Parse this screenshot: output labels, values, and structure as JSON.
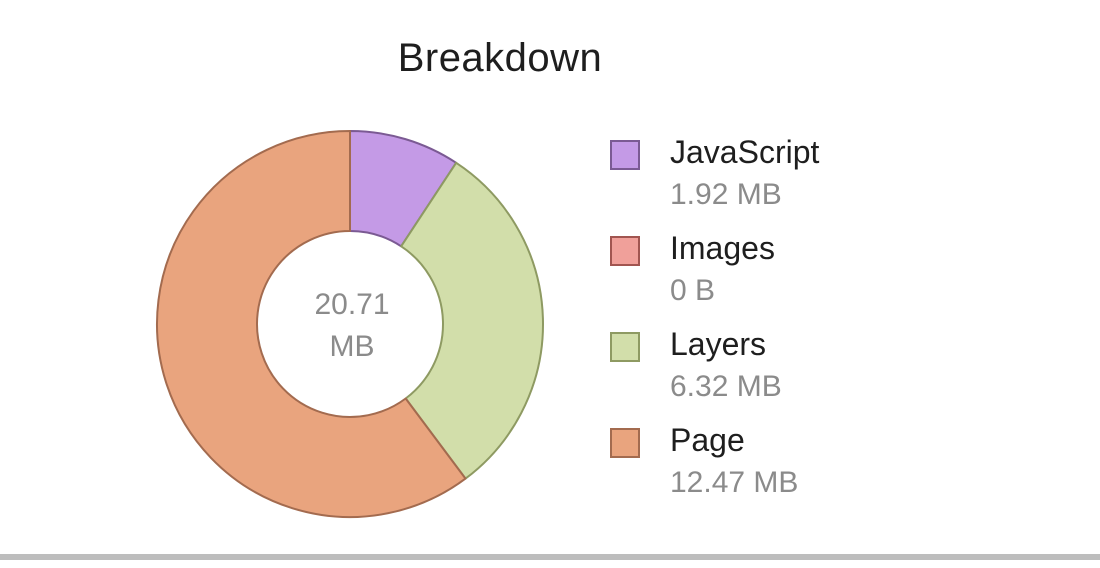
{
  "chart_data": {
    "type": "pie",
    "title": "Breakdown",
    "center_value": "20.71",
    "center_unit": "MB",
    "legend_position": "right",
    "categories": [
      "JavaScript",
      "Images",
      "Layers",
      "Page"
    ],
    "values": [
      1.92,
      0,
      6.32,
      12.47
    ],
    "value_labels": [
      "1.92 MB",
      "0 B",
      "6.32 MB",
      "12.47 MB"
    ],
    "unit": "MB",
    "colors": [
      "#c49ae6",
      "#f0a09a",
      "#d2deaa",
      "#e9a47e"
    ],
    "stroke_colors": [
      "#7b5a93",
      "#a15550",
      "#8e9a62",
      "#a36b4f"
    ]
  }
}
